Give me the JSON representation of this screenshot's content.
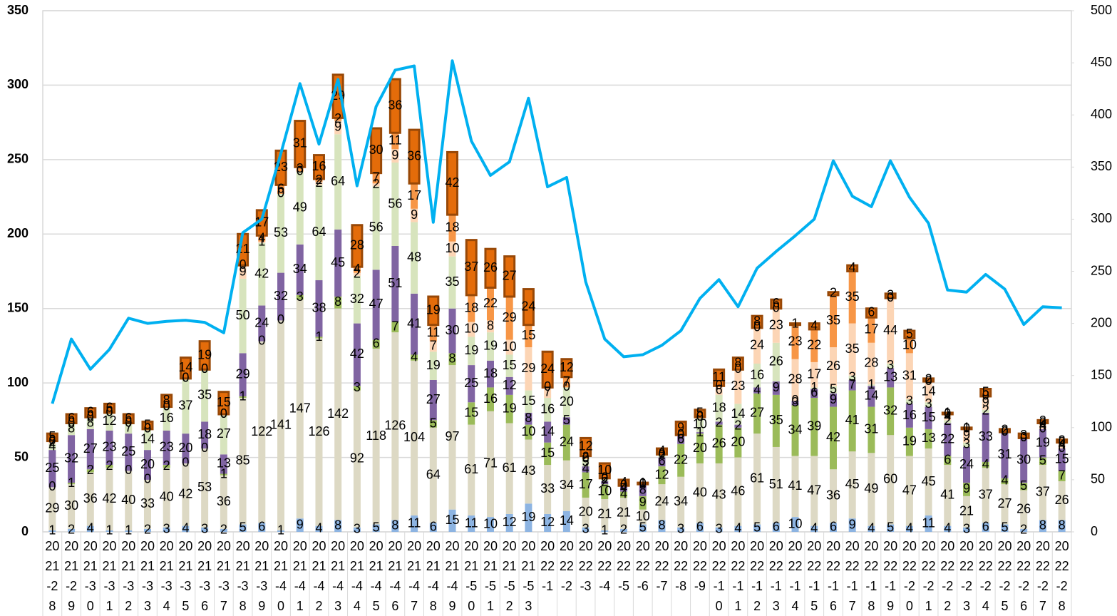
{
  "chart_data": {
    "type": "bar",
    "stacked": true,
    "grid": true,
    "categories": [
      "2021-28",
      "2021-29",
      "2021-30",
      "2021-31",
      "2021-32",
      "2021-33",
      "2021-34",
      "2021-35",
      "2021-36",
      "2021-37",
      "2021-38",
      "2021-39",
      "2021-40",
      "2021-41",
      "2021-42",
      "2021-43",
      "2021-44",
      "2021-45",
      "2021-46",
      "2021-47",
      "2021-48",
      "2021-49",
      "2021-50",
      "2021-51",
      "2021-52",
      "2021-53",
      "2022-1",
      "2022-2",
      "2022-3",
      "2022-4",
      "2022-5",
      "2022-6",
      "2022-7",
      "2022-8",
      "2022-9",
      "2022-10",
      "2022-11",
      "2022-12",
      "2022-13",
      "2022-14",
      "2022-15",
      "2022-16",
      "2022-17",
      "2022-18",
      "2022-19",
      "2022-20",
      "2022-21",
      "2022-22",
      "2022-23",
      "2022-24",
      "2022-25",
      "2022-26",
      "2022-27",
      "2022-28"
    ],
    "series": [
      {
        "color": "#8db4e2",
        "values": [
          1,
          2,
          4,
          1,
          1,
          2,
          3,
          4,
          3,
          2,
          5,
          6,
          1,
          9,
          4,
          8,
          3,
          5,
          8,
          11,
          6,
          15,
          11,
          10,
          12,
          19,
          12,
          14,
          3,
          1,
          2,
          5,
          8,
          3,
          6,
          3,
          4,
          5,
          6,
          10,
          4,
          6,
          9,
          4,
          5,
          4,
          11,
          4,
          3,
          6,
          5,
          2,
          8,
          8
        ]
      },
      {
        "color": "#ddd9c4",
        "values": [
          29,
          30,
          36,
          42,
          40,
          33,
          40,
          42,
          53,
          36,
          85,
          122,
          141,
          147,
          126,
          142,
          92,
          118,
          126,
          104,
          64,
          97,
          61,
          71,
          61,
          43,
          33,
          34,
          20,
          21,
          21,
          10,
          24,
          34,
          40,
          43,
          46,
          61,
          51,
          41,
          47,
          36,
          45,
          49,
          60,
          47,
          45,
          41,
          21,
          37,
          27,
          26,
          37,
          26
        ]
      },
      {
        "color": "#9bbb59",
        "values": [
          0,
          1,
          2,
          2,
          0,
          0,
          2,
          0,
          0,
          1,
          1,
          0,
          0,
          3,
          1,
          8,
          3,
          6,
          7,
          4,
          5,
          8,
          15,
          16,
          19,
          10,
          15,
          24,
          17,
          10,
          4,
          9,
          12,
          22,
          20,
          26,
          20,
          27,
          35,
          34,
          39,
          42,
          41,
          31,
          32,
          19,
          13,
          6,
          9,
          4,
          4,
          5,
          5,
          7
        ]
      },
      {
        "color": "#8064a2",
        "values": [
          25,
          32,
          27,
          23,
          25,
          20,
          23,
          20,
          18,
          13,
          29,
          24,
          32,
          34,
          38,
          45,
          42,
          47,
          51,
          41,
          27,
          30,
          25,
          18,
          12,
          8,
          14,
          5,
          4,
          2,
          4,
          8,
          6,
          6,
          1,
          2,
          2,
          4,
          9,
          3,
          6,
          9,
          7,
          14,
          13,
          16,
          15,
          22,
          24,
          33,
          31,
          30,
          19,
          15
        ]
      },
      {
        "color": "#d7e4bd",
        "values": [
          4,
          8,
          8,
          12,
          7,
          14,
          16,
          37,
          35,
          27,
          50,
          42,
          53,
          49,
          64,
          64,
          32,
          56,
          56,
          48,
          19,
          35,
          19,
          19,
          15,
          15,
          16,
          20,
          5,
          2,
          0,
          0,
          2,
          0,
          10,
          18,
          14,
          16,
          26,
          0,
          1,
          5,
          3,
          1,
          3,
          3,
          3,
          2,
          3,
          2,
          0,
          0,
          0,
          0
        ]
      },
      {
        "color": "#fcd5b5",
        "values": [
          2,
          0,
          0,
          0,
          0,
          0,
          0,
          0,
          0,
          0,
          9,
          1,
          0,
          0,
          2,
          9,
          2,
          2,
          9,
          9,
          7,
          10,
          10,
          8,
          10,
          29,
          7,
          0,
          0,
          0,
          0,
          0,
          0,
          0,
          0,
          6,
          23,
          24,
          23,
          28,
          17,
          26,
          35,
          28,
          44,
          31,
          14,
          4,
          9,
          9,
          0,
          0,
          4,
          4
        ]
      },
      {
        "color": "#f79646",
        "values": [
          0,
          0,
          0,
          0,
          0,
          0,
          0,
          0,
          0,
          0,
          0,
          4,
          6,
          3,
          2,
          2,
          4,
          7,
          11,
          17,
          11,
          18,
          18,
          22,
          29,
          15,
          0,
          7,
          2,
          0,
          0,
          0,
          0,
          0,
          0,
          0,
          0,
          0,
          0,
          23,
          22,
          35,
          35,
          17,
          0,
          10,
          0,
          0,
          0,
          0,
          0,
          0,
          0,
          0
        ]
      },
      {
        "color": "#e46c0a",
        "values": [
          5,
          6,
          6,
          6,
          6,
          5,
          8,
          14,
          19,
          15,
          21,
          17,
          23,
          31,
          16,
          29,
          28,
          30,
          36,
          36,
          19,
          42,
          37,
          26,
          27,
          24,
          24,
          12,
          12,
          10,
          4,
          1,
          4,
          9,
          5,
          11,
          8,
          8,
          6,
          1,
          4,
          2,
          4,
          6,
          3,
          5,
          2,
          1,
          1,
          5,
          2,
          3,
          2,
          2
        ]
      },
      {
        "type": "line",
        "axis": "y2",
        "color": "#00b0f0",
        "values": [
          123,
          185,
          156,
          175,
          205,
          200,
          202,
          203,
          201,
          191,
          287,
          300,
          363,
          430,
          372,
          434,
          332,
          408,
          443,
          447,
          297,
          452,
          375,
          342,
          355,
          416,
          331,
          340,
          240,
          185,
          168,
          170,
          179,
          193,
          224,
          242,
          216,
          253,
          269,
          284,
          300,
          356,
          322,
          312,
          356,
          321,
          296,
          232,
          230,
          247,
          233,
          199,
          216,
          215
        ]
      }
    ],
    "ylim": [
      0,
      350
    ],
    "yticks": [
      0,
      50,
      100,
      150,
      200,
      250,
      300,
      350
    ],
    "y2lim": [
      0,
      500
    ],
    "y2ticks": [
      0,
      50,
      100,
      150,
      200,
      250,
      300,
      350,
      400,
      450,
      500
    ]
  }
}
